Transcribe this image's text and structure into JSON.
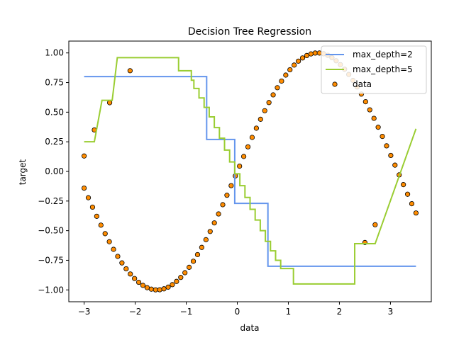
{
  "chart_data": {
    "type": "line",
    "title": "Decision Tree Regression",
    "xlabel": "data",
    "ylabel": "target",
    "xlim": [
      -3.3,
      3.8
    ],
    "ylim": [
      -1.1,
      1.1
    ],
    "xticks": [
      -3,
      -2,
      -1,
      0,
      1,
      2,
      3
    ],
    "xtick_labels": [
      "−3",
      "−2",
      "−1",
      "0",
      "1",
      "2",
      "3"
    ],
    "yticks": [
      -1.0,
      -0.75,
      -0.5,
      -0.25,
      0.0,
      0.25,
      0.5,
      0.75,
      1.0
    ],
    "ytick_labels": [
      "−1.00",
      "−0.75",
      "−0.50",
      "−0.25",
      "0.00",
      "0.25",
      "0.50",
      "0.75",
      "1.00"
    ],
    "grid": false,
    "legend_position": "top-right",
    "series": [
      {
        "name": "max_depth=2",
        "color": "#6495ed",
        "kind": "step",
        "x": [
          -3.0,
          -0.6,
          -0.6,
          -0.05,
          -0.05,
          0.6,
          0.6,
          3.5
        ],
        "y": [
          0.8,
          0.8,
          0.27,
          0.27,
          -0.27,
          -0.27,
          -0.8,
          -0.8
        ]
      },
      {
        "name": "max_depth=5",
        "color": "#9acd32",
        "kind": "step",
        "x": [
          -3.0,
          -2.8,
          -2.65,
          -2.45,
          -2.35,
          -1.15,
          -1.15,
          -0.9,
          -0.9,
          -0.85,
          -0.85,
          -0.75,
          -0.75,
          -0.65,
          -0.65,
          -0.55,
          -0.55,
          -0.45,
          -0.45,
          -0.35,
          -0.35,
          -0.25,
          -0.25,
          -0.15,
          -0.15,
          -0.05,
          -0.05,
          0.05,
          0.05,
          0.15,
          0.15,
          0.25,
          0.25,
          0.35,
          0.35,
          0.45,
          0.45,
          0.55,
          0.55,
          0.65,
          0.65,
          0.75,
          0.75,
          0.85,
          0.85,
          1.1,
          1.1,
          2.3,
          2.3,
          2.7,
          3.5
        ],
        "y": [
          0.25,
          0.25,
          0.6,
          0.6,
          0.96,
          0.96,
          0.85,
          0.85,
          0.77,
          0.77,
          0.7,
          0.7,
          0.62,
          0.62,
          0.54,
          0.54,
          0.46,
          0.46,
          0.37,
          0.37,
          0.28,
          0.28,
          0.18,
          0.18,
          0.08,
          0.08,
          -0.02,
          -0.02,
          -0.12,
          -0.12,
          -0.22,
          -0.22,
          -0.32,
          -0.32,
          -0.41,
          -0.41,
          -0.5,
          -0.5,
          -0.59,
          -0.59,
          -0.67,
          -0.67,
          -0.75,
          -0.75,
          -0.82,
          -0.82,
          -0.95,
          -0.95,
          -0.61,
          -0.61,
          0.36
        ]
      }
    ],
    "scatter": {
      "name": "data",
      "color": "#ff8c00",
      "edgecolor": "#000000",
      "function": "sin",
      "x_range": [
        -3.0,
        3.5
      ],
      "count": 80,
      "outliers": [
        {
          "x": -3.0,
          "y": 0.13
        },
        {
          "x": -2.8,
          "y": 0.35
        },
        {
          "x": -2.5,
          "y": 0.58
        },
        {
          "x": -2.1,
          "y": 0.85
        },
        {
          "x": 2.5,
          "y": -0.6
        },
        {
          "x": 2.7,
          "y": -0.45
        }
      ]
    }
  }
}
